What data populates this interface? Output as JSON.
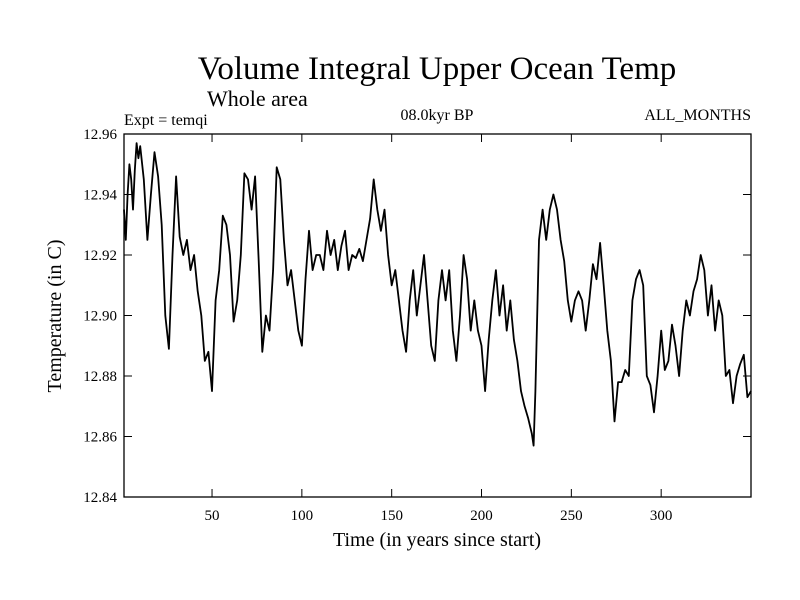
{
  "chart_data": {
    "type": "line",
    "title": "Volume Integral Upper Ocean Temp",
    "subtitle": "Whole area",
    "experiment": "Expt = temqi",
    "period": "08.0kyr BP",
    "months": "ALL_MONTHS",
    "xlabel": "Time (in years since start)",
    "ylabel": "Temperature (in C)",
    "xlim": [
      1,
      350
    ],
    "ylim": [
      12.84,
      12.96
    ],
    "x_ticks": [
      50,
      100,
      150,
      200,
      250,
      300
    ],
    "y_ticks": [
      12.84,
      12.86,
      12.88,
      12.9,
      12.92,
      12.94,
      12.96
    ],
    "y_tick_labels": [
      "12.84",
      "12.86",
      "12.88",
      "12.90",
      "12.92",
      "12.94",
      "12.96"
    ],
    "grid": false,
    "series": [
      {
        "name": "temqi",
        "color": "#000000",
        "x": [
          1,
          2,
          3,
          4,
          5,
          6,
          7,
          8,
          9,
          10,
          12,
          14,
          16,
          18,
          20,
          22,
          24,
          26,
          28,
          30,
          32,
          34,
          36,
          38,
          40,
          42,
          44,
          46,
          48,
          50,
          52,
          54,
          56,
          58,
          60,
          62,
          64,
          66,
          68,
          70,
          72,
          74,
          76,
          78,
          80,
          82,
          84,
          86,
          88,
          90,
          92,
          94,
          96,
          98,
          100,
          102,
          104,
          106,
          108,
          110,
          112,
          114,
          116,
          118,
          120,
          122,
          124,
          126,
          128,
          130,
          132,
          134,
          136,
          138,
          140,
          142,
          144,
          146,
          148,
          150,
          152,
          154,
          156,
          158,
          160,
          162,
          164,
          166,
          168,
          170,
          172,
          174,
          176,
          178,
          180,
          182,
          184,
          186,
          188,
          190,
          192,
          194,
          196,
          198,
          200,
          202,
          204,
          206,
          208,
          210,
          212,
          214,
          216,
          218,
          220,
          222,
          224,
          226,
          228,
          229,
          230,
          232,
          234,
          236,
          238,
          240,
          242,
          244,
          246,
          248,
          250,
          252,
          254,
          256,
          258,
          260,
          262,
          264,
          266,
          268,
          270,
          272,
          274,
          276,
          278,
          280,
          282,
          284,
          286,
          288,
          290,
          292,
          294,
          296,
          298,
          300,
          302,
          304,
          306,
          308,
          310,
          312,
          314,
          316,
          318,
          320,
          322,
          324,
          326,
          328,
          330,
          332,
          334,
          336,
          338,
          340,
          342,
          344,
          346,
          348,
          350
        ],
        "y": [
          12.935,
          12.925,
          12.94,
          12.95,
          12.945,
          12.935,
          12.948,
          12.957,
          12.952,
          12.956,
          12.945,
          12.925,
          12.94,
          12.954,
          12.946,
          12.93,
          12.9,
          12.889,
          12.92,
          12.946,
          12.926,
          12.92,
          12.925,
          12.915,
          12.92,
          12.908,
          12.9,
          12.885,
          12.888,
          12.875,
          12.905,
          12.915,
          12.933,
          12.93,
          12.92,
          12.898,
          12.905,
          12.92,
          12.947,
          12.945,
          12.935,
          12.946,
          12.918,
          12.888,
          12.9,
          12.895,
          12.915,
          12.949,
          12.945,
          12.925,
          12.91,
          12.915,
          12.905,
          12.895,
          12.89,
          12.912,
          12.928,
          12.915,
          12.92,
          12.92,
          12.915,
          12.928,
          12.92,
          12.925,
          12.915,
          12.923,
          12.928,
          12.915,
          12.92,
          12.919,
          12.922,
          12.918,
          12.925,
          12.932,
          12.945,
          12.935,
          12.928,
          12.935,
          12.92,
          12.91,
          12.915,
          12.905,
          12.895,
          12.888,
          12.905,
          12.915,
          12.9,
          12.91,
          12.92,
          12.905,
          12.89,
          12.885,
          12.905,
          12.915,
          12.905,
          12.915,
          12.895,
          12.885,
          12.9,
          12.92,
          12.912,
          12.895,
          12.905,
          12.895,
          12.89,
          12.875,
          12.892,
          12.905,
          12.915,
          12.9,
          12.91,
          12.895,
          12.905,
          12.892,
          12.885,
          12.875,
          12.87,
          12.866,
          12.861,
          12.857,
          12.875,
          12.925,
          12.935,
          12.925,
          12.935,
          12.94,
          12.935,
          12.925,
          12.918,
          12.905,
          12.898,
          12.905,
          12.908,
          12.905,
          12.895,
          12.905,
          12.917,
          12.912,
          12.924,
          12.91,
          12.895,
          12.885,
          12.865,
          12.878,
          12.878,
          12.882,
          12.88,
          12.905,
          12.912,
          12.915,
          12.91,
          12.88,
          12.877,
          12.868,
          12.88,
          12.895,
          12.882,
          12.885,
          12.897,
          12.89,
          12.88,
          12.895,
          12.905,
          12.9,
          12.908,
          12.912,
          12.92,
          12.915,
          12.9,
          12.91,
          12.895,
          12.905,
          12.9,
          12.88,
          12.882,
          12.871,
          12.88,
          12.884,
          12.887,
          12.873,
          12.875
        ]
      }
    ]
  }
}
